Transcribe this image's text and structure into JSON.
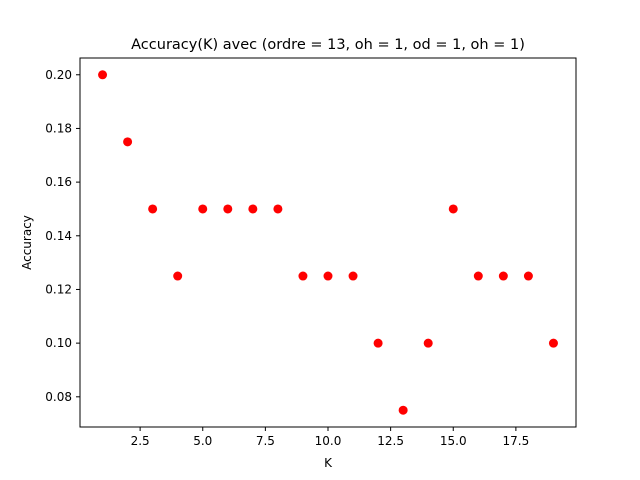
{
  "chart_data": {
    "type": "scatter",
    "title": "Accuracy(K) avec (ordre = 13, oh = 1, od = 1, oh = 1)",
    "xlabel": "K",
    "ylabel": "Accuracy",
    "xlim": [
      0.1,
      19.9
    ],
    "ylim": [
      0.06875,
      0.20625
    ],
    "xticks": [
      2.5,
      5.0,
      7.5,
      10.0,
      12.5,
      15.0,
      17.5
    ],
    "xtick_labels": [
      "2.5",
      "5.0",
      "7.5",
      "10.0",
      "12.5",
      "15.0",
      "17.5"
    ],
    "yticks": [
      0.08,
      0.1,
      0.12,
      0.14,
      0.16,
      0.18,
      0.2
    ],
    "ytick_labels": [
      "0.08",
      "0.10",
      "0.12",
      "0.14",
      "0.16",
      "0.18",
      "0.20"
    ],
    "grid": false,
    "marker_color": "#ff0000",
    "points": [
      {
        "x": 1,
        "y": 0.2
      },
      {
        "x": 2,
        "y": 0.175
      },
      {
        "x": 3,
        "y": 0.15
      },
      {
        "x": 4,
        "y": 0.125
      },
      {
        "x": 5,
        "y": 0.15
      },
      {
        "x": 6,
        "y": 0.15
      },
      {
        "x": 7,
        "y": 0.15
      },
      {
        "x": 8,
        "y": 0.15
      },
      {
        "x": 9,
        "y": 0.125
      },
      {
        "x": 10,
        "y": 0.125
      },
      {
        "x": 11,
        "y": 0.125
      },
      {
        "x": 12,
        "y": 0.1
      },
      {
        "x": 13,
        "y": 0.075
      },
      {
        "x": 14,
        "y": 0.1
      },
      {
        "x": 15,
        "y": 0.15
      },
      {
        "x": 16,
        "y": 0.125
      },
      {
        "x": 17,
        "y": 0.125
      },
      {
        "x": 18,
        "y": 0.125
      },
      {
        "x": 19,
        "y": 0.1
      }
    ]
  }
}
